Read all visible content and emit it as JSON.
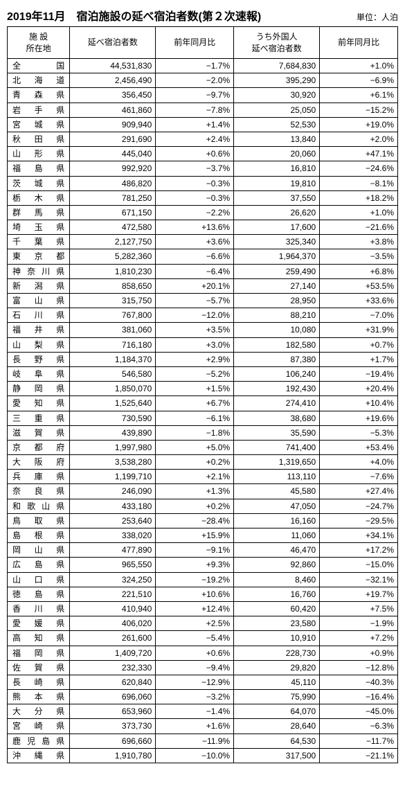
{
  "title": "2019年11月　宿泊施設の延べ宿泊者数(第２次速報)",
  "unit": "単位：人泊",
  "columns": {
    "loc": "施 設\n所在地",
    "guests": "延べ宿泊者数",
    "yoy": "前年同月比",
    "foreign": "うち外国人\n延べ宿泊者数",
    "foreign_yoy": "前年同月比"
  },
  "rows": [
    {
      "loc": "全国",
      "guests": "44,531,830",
      "yoy": "−1.7%",
      "foreign": "7,684,830",
      "fyoy": "+1.0%"
    },
    {
      "loc": "北海道",
      "guests": "2,456,490",
      "yoy": "−2.0%",
      "foreign": "395,290",
      "fyoy": "−6.9%"
    },
    {
      "loc": "青森県",
      "guests": "356,450",
      "yoy": "−9.7%",
      "foreign": "30,920",
      "fyoy": "+6.1%"
    },
    {
      "loc": "岩手県",
      "guests": "461,860",
      "yoy": "−7.8%",
      "foreign": "25,050",
      "fyoy": "−15.2%"
    },
    {
      "loc": "宮城県",
      "guests": "909,940",
      "yoy": "+1.4%",
      "foreign": "52,530",
      "fyoy": "+19.0%"
    },
    {
      "loc": "秋田県",
      "guests": "291,690",
      "yoy": "+2.4%",
      "foreign": "13,840",
      "fyoy": "+2.0%"
    },
    {
      "loc": "山形県",
      "guests": "445,040",
      "yoy": "+0.6%",
      "foreign": "20,060",
      "fyoy": "+47.1%"
    },
    {
      "loc": "福島県",
      "guests": "992,920",
      "yoy": "−3.7%",
      "foreign": "16,810",
      "fyoy": "−24.6%"
    },
    {
      "loc": "茨城県",
      "guests": "486,820",
      "yoy": "−0.3%",
      "foreign": "19,810",
      "fyoy": "−8.1%"
    },
    {
      "loc": "栃木県",
      "guests": "781,250",
      "yoy": "−0.3%",
      "foreign": "37,550",
      "fyoy": "+18.2%"
    },
    {
      "loc": "群馬県",
      "guests": "671,150",
      "yoy": "−2.2%",
      "foreign": "26,620",
      "fyoy": "+1.0%"
    },
    {
      "loc": "埼玉県",
      "guests": "472,580",
      "yoy": "+13.6%",
      "foreign": "17,600",
      "fyoy": "−21.6%"
    },
    {
      "loc": "千葉県",
      "guests": "2,127,750",
      "yoy": "+3.6%",
      "foreign": "325,340",
      "fyoy": "+3.8%"
    },
    {
      "loc": "東京都",
      "guests": "5,282,360",
      "yoy": "−6.6%",
      "foreign": "1,964,370",
      "fyoy": "−3.5%"
    },
    {
      "loc": "神奈川県",
      "guests": "1,810,230",
      "yoy": "−6.4%",
      "foreign": "259,490",
      "fyoy": "+6.8%"
    },
    {
      "loc": "新潟県",
      "guests": "858,650",
      "yoy": "+20.1%",
      "foreign": "27,140",
      "fyoy": "+53.5%"
    },
    {
      "loc": "富山県",
      "guests": "315,750",
      "yoy": "−5.7%",
      "foreign": "28,950",
      "fyoy": "+33.6%"
    },
    {
      "loc": "石川県",
      "guests": "767,800",
      "yoy": "−12.0%",
      "foreign": "88,210",
      "fyoy": "−7.0%"
    },
    {
      "loc": "福井県",
      "guests": "381,060",
      "yoy": "+3.5%",
      "foreign": "10,080",
      "fyoy": "+31.9%"
    },
    {
      "loc": "山梨県",
      "guests": "716,180",
      "yoy": "+3.0%",
      "foreign": "182,580",
      "fyoy": "+0.7%"
    },
    {
      "loc": "長野県",
      "guests": "1,184,370",
      "yoy": "+2.9%",
      "foreign": "87,380",
      "fyoy": "+1.7%"
    },
    {
      "loc": "岐阜県",
      "guests": "546,580",
      "yoy": "−5.2%",
      "foreign": "106,240",
      "fyoy": "−19.4%"
    },
    {
      "loc": "静岡県",
      "guests": "1,850,070",
      "yoy": "+1.5%",
      "foreign": "192,430",
      "fyoy": "+20.4%"
    },
    {
      "loc": "愛知県",
      "guests": "1,525,640",
      "yoy": "+6.7%",
      "foreign": "274,410",
      "fyoy": "+10.4%"
    },
    {
      "loc": "三重県",
      "guests": "730,590",
      "yoy": "−6.1%",
      "foreign": "38,680",
      "fyoy": "+19.6%"
    },
    {
      "loc": "滋賀県",
      "guests": "439,890",
      "yoy": "−1.8%",
      "foreign": "35,590",
      "fyoy": "−5.3%"
    },
    {
      "loc": "京都府",
      "guests": "1,997,980",
      "yoy": "+5.0%",
      "foreign": "741,400",
      "fyoy": "+53.4%"
    },
    {
      "loc": "大阪府",
      "guests": "3,538,280",
      "yoy": "+0.2%",
      "foreign": "1,319,650",
      "fyoy": "+4.0%"
    },
    {
      "loc": "兵庫県",
      "guests": "1,199,710",
      "yoy": "+2.1%",
      "foreign": "113,110",
      "fyoy": "−7.6%"
    },
    {
      "loc": "奈良県",
      "guests": "246,090",
      "yoy": "+1.3%",
      "foreign": "45,580",
      "fyoy": "+27.4%"
    },
    {
      "loc": "和歌山県",
      "guests": "433,180",
      "yoy": "+0.2%",
      "foreign": "47,050",
      "fyoy": "−24.7%"
    },
    {
      "loc": "鳥取県",
      "guests": "253,640",
      "yoy": "−28.4%",
      "foreign": "16,160",
      "fyoy": "−29.5%"
    },
    {
      "loc": "島根県",
      "guests": "338,020",
      "yoy": "+15.9%",
      "foreign": "11,060",
      "fyoy": "+34.1%"
    },
    {
      "loc": "岡山県",
      "guests": "477,890",
      "yoy": "−9.1%",
      "foreign": "46,470",
      "fyoy": "+17.2%"
    },
    {
      "loc": "広島県",
      "guests": "965,550",
      "yoy": "+9.3%",
      "foreign": "92,860",
      "fyoy": "−15.0%"
    },
    {
      "loc": "山口県",
      "guests": "324,250",
      "yoy": "−19.2%",
      "foreign": "8,460",
      "fyoy": "−32.1%"
    },
    {
      "loc": "徳島県",
      "guests": "221,510",
      "yoy": "+10.6%",
      "foreign": "16,760",
      "fyoy": "+19.7%"
    },
    {
      "loc": "香川県",
      "guests": "410,940",
      "yoy": "+12.4%",
      "foreign": "60,420",
      "fyoy": "+7.5%"
    },
    {
      "loc": "愛媛県",
      "guests": "406,020",
      "yoy": "+2.5%",
      "foreign": "23,580",
      "fyoy": "−1.9%"
    },
    {
      "loc": "高知県",
      "guests": "261,600",
      "yoy": "−5.4%",
      "foreign": "10,910",
      "fyoy": "+7.2%"
    },
    {
      "loc": "福岡県",
      "guests": "1,409,720",
      "yoy": "+0.6%",
      "foreign": "228,730",
      "fyoy": "+0.9%"
    },
    {
      "loc": "佐賀県",
      "guests": "232,330",
      "yoy": "−9.4%",
      "foreign": "29,820",
      "fyoy": "−12.8%"
    },
    {
      "loc": "長崎県",
      "guests": "620,840",
      "yoy": "−12.9%",
      "foreign": "45,110",
      "fyoy": "−40.3%"
    },
    {
      "loc": "熊本県",
      "guests": "696,060",
      "yoy": "−3.2%",
      "foreign": "75,990",
      "fyoy": "−16.4%"
    },
    {
      "loc": "大分県",
      "guests": "653,960",
      "yoy": "−1.4%",
      "foreign": "64,070",
      "fyoy": "−45.0%"
    },
    {
      "loc": "宮崎県",
      "guests": "373,730",
      "yoy": "+1.6%",
      "foreign": "28,640",
      "fyoy": "−6.3%"
    },
    {
      "loc": "鹿児島県",
      "guests": "696,660",
      "yoy": "−11.9%",
      "foreign": "64,530",
      "fyoy": "−11.7%"
    },
    {
      "loc": "沖縄県",
      "guests": "1,910,780",
      "yoy": "−10.0%",
      "foreign": "317,500",
      "fyoy": "−21.1%"
    }
  ]
}
